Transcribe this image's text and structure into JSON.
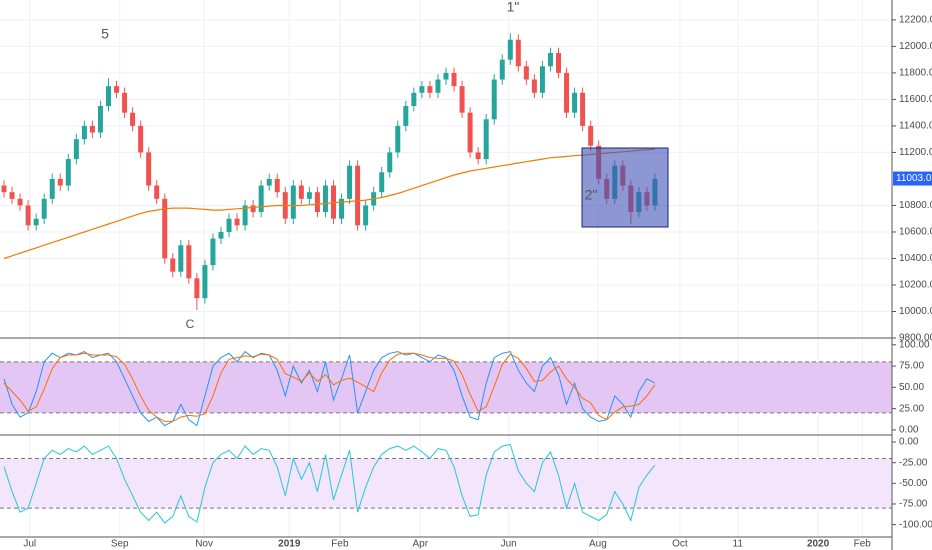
{
  "chart_data": [
    {
      "type": "candlestick",
      "xlim": [
        -0.5,
        110.5
      ],
      "xticks": [
        {
          "value": 3.2,
          "label": "Jul"
        },
        {
          "value": 14.4,
          "label": "Sep"
        },
        {
          "value": 24.9,
          "label": "Nov"
        },
        {
          "value": 35.5,
          "label": "2019"
        },
        {
          "value": 41.8,
          "label": "Feb"
        },
        {
          "value": 51.8,
          "label": "Apr"
        },
        {
          "value": 62.8,
          "label": "Jun"
        },
        {
          "value": 73.9,
          "label": "Aug"
        },
        {
          "value": 84.1,
          "label": "Oct"
        },
        {
          "value": 91.3,
          "label": "11"
        },
        {
          "value": 101.3,
          "label": "2020"
        },
        {
          "value": 106.8,
          "label": "Feb"
        }
      ],
      "ylim": [
        9800,
        12350
      ],
      "yticks": [
        {
          "value": 12200,
          "label": "12200.00"
        },
        {
          "value": 12000,
          "label": "12000.00"
        },
        {
          "value": 11800,
          "label": "11800.00"
        },
        {
          "value": 11600,
          "label": "11600.00"
        },
        {
          "value": 11400,
          "label": "11400.00"
        },
        {
          "value": 11200,
          "label": "11200.00"
        },
        {
          "value": 10800,
          "label": "10800.00"
        },
        {
          "value": 10600,
          "label": "10600.00"
        },
        {
          "value": 10400,
          "label": "10400.00"
        },
        {
          "value": 10200,
          "label": "10200.00"
        },
        {
          "value": 10000,
          "label": "10000.00"
        },
        {
          "value": 9800,
          "label": "9800.00"
        }
      ],
      "grid": true,
      "up_color": "#26a69a",
      "down_color": "#ef5350",
      "candles": [
        [
          10950,
          10990,
          10860,
          10900
        ],
        [
          10900,
          10940,
          10810,
          10850
        ],
        [
          10850,
          10890,
          10760,
          10800
        ],
        [
          10800,
          10840,
          10610,
          10650
        ],
        [
          10650,
          10740,
          10610,
          10700
        ],
        [
          10700,
          10890,
          10660,
          10850
        ],
        [
          10850,
          11040,
          10810,
          11000
        ],
        [
          11000,
          11040,
          10910,
          10950
        ],
        [
          10950,
          11190,
          10910,
          11150
        ],
        [
          11150,
          11340,
          11110,
          11300
        ],
        [
          11300,
          11440,
          11260,
          11400
        ],
        [
          11400,
          11440,
          11310,
          11350
        ],
        [
          11350,
          11590,
          11310,
          11550
        ],
        [
          11550,
          11760,
          11510,
          11700
        ],
        [
          11700,
          11740,
          11610,
          11650
        ],
        [
          11650,
          11690,
          11460,
          11500
        ],
        [
          11500,
          11540,
          11360,
          11400
        ],
        [
          11400,
          11440,
          11160,
          11200
        ],
        [
          11200,
          11240,
          10910,
          10950
        ],
        [
          10950,
          10990,
          10810,
          10850
        ],
        [
          10850,
          10890,
          10360,
          10400
        ],
        [
          10400,
          10440,
          10260,
          10300
        ],
        [
          10300,
          10540,
          10260,
          10500
        ],
        [
          10500,
          10540,
          10210,
          10250
        ],
        [
          10250,
          10290,
          10010,
          10100
        ],
        [
          10100,
          10390,
          10060,
          10350
        ],
        [
          10350,
          10590,
          10310,
          10550
        ],
        [
          10550,
          10640,
          10510,
          10600
        ],
        [
          10600,
          10740,
          10560,
          10700
        ],
        [
          10700,
          10740,
          10610,
          10650
        ],
        [
          10650,
          10840,
          10610,
          10800
        ],
        [
          10800,
          10840,
          10710,
          10750
        ],
        [
          10750,
          10990,
          10710,
          10950
        ],
        [
          10950,
          11040,
          10910,
          11000
        ],
        [
          11000,
          11040,
          10860,
          10900
        ],
        [
          10900,
          10940,
          10660,
          10700
        ],
        [
          10700,
          10990,
          10660,
          10950
        ],
        [
          10950,
          10990,
          10810,
          10850
        ],
        [
          10850,
          10940,
          10810,
          10900
        ],
        [
          10900,
          10940,
          10710,
          10750
        ],
        [
          10750,
          10990,
          10710,
          10950
        ],
        [
          10950,
          10990,
          10660,
          10700
        ],
        [
          10700,
          10890,
          10660,
          10850
        ],
        [
          10850,
          11140,
          10810,
          11100
        ],
        [
          11100,
          11140,
          10610,
          10650
        ],
        [
          10650,
          10840,
          10610,
          10800
        ],
        [
          10800,
          10940,
          10760,
          10900
        ],
        [
          10900,
          11090,
          10860,
          11050
        ],
        [
          11050,
          11240,
          11010,
          11200
        ],
        [
          11200,
          11440,
          11160,
          11400
        ],
        [
          11400,
          11590,
          11360,
          11550
        ],
        [
          11550,
          11690,
          11510,
          11650
        ],
        [
          11650,
          11740,
          11610,
          11700
        ],
        [
          11700,
          11740,
          11610,
          11650
        ],
        [
          11650,
          11790,
          11610,
          11750
        ],
        [
          11750,
          11840,
          11710,
          11800
        ],
        [
          11800,
          11840,
          11660,
          11700
        ],
        [
          11700,
          11740,
          11460,
          11500
        ],
        [
          11500,
          11540,
          11160,
          11200
        ],
        [
          11200,
          11240,
          11110,
          11150
        ],
        [
          11150,
          11490,
          11110,
          11450
        ],
        [
          11450,
          11790,
          11410,
          11750
        ],
        [
          11750,
          11940,
          11710,
          11900
        ],
        [
          11900,
          12100,
          11860,
          12050
        ],
        [
          12050,
          12090,
          11810,
          11850
        ],
        [
          11850,
          11890,
          11710,
          11750
        ],
        [
          11750,
          11790,
          11610,
          11650
        ],
        [
          11650,
          11890,
          11610,
          11850
        ],
        [
          11850,
          11990,
          11810,
          11950
        ],
        [
          11950,
          11990,
          11760,
          11800
        ],
        [
          11800,
          11840,
          11460,
          11500
        ],
        [
          11500,
          11690,
          11460,
          11650
        ],
        [
          11650,
          11690,
          11360,
          11400
        ],
        [
          11400,
          11440,
          11210,
          11250
        ],
        [
          11250,
          11290,
          10960,
          11000
        ],
        [
          11000,
          11040,
          10810,
          10850
        ],
        [
          10850,
          11140,
          10810,
          11100
        ],
        [
          11100,
          11140,
          10910,
          10950
        ],
        [
          10950,
          10990,
          10660,
          10750
        ],
        [
          10750,
          10940,
          10710,
          10900
        ],
        [
          10900,
          10940,
          10760,
          10800
        ],
        [
          10800,
          11040,
          10760,
          11000
        ]
      ],
      "ma_color": "#f57c00",
      "ma_values": [
        10400,
        10420,
        10440,
        10460,
        10480,
        10500,
        10520,
        10540,
        10560,
        10580,
        10600,
        10620,
        10640,
        10660,
        10680,
        10700,
        10720,
        10740,
        10755,
        10765,
        10775,
        10780,
        10780,
        10780,
        10775,
        10770,
        10765,
        10765,
        10770,
        10775,
        10780,
        10785,
        10790,
        10795,
        10800,
        10800,
        10800,
        10800,
        10805,
        10810,
        10815,
        10820,
        10825,
        10830,
        10835,
        10840,
        10850,
        10860,
        10875,
        10890,
        10910,
        10930,
        10950,
        10970,
        10990,
        11010,
        11030,
        11045,
        11060,
        11070,
        11080,
        11090,
        11100,
        11110,
        11120,
        11130,
        11140,
        11150,
        11160,
        11165,
        11170,
        11175,
        11180,
        11185,
        11190,
        11195,
        11200,
        11205,
        11210,
        11215,
        11220,
        11225
      ],
      "annotations": [
        "5",
        "1\"",
        "C",
        "2\""
      ],
      "last_price": 11003.05,
      "last_price_color": "#2962ff"
    },
    {
      "type": "stochastic",
      "ylim": [
        -6,
        108
      ],
      "yticks": [
        {
          "value": 100,
          "label": "100.00"
        },
        {
          "value": 75,
          "label": "75.00"
        },
        {
          "value": 50,
          "label": "50.00"
        },
        {
          "value": 25,
          "label": "25.00"
        },
        {
          "value": 0,
          "label": "0.00"
        }
      ],
      "bands": [
        20,
        80
      ],
      "band_color": "#e4c6f5",
      "series": [
        {
          "color": "#2196f3",
          "values": [
            60,
            30,
            15,
            20,
            45,
            80,
            90,
            85,
            90,
            88,
            92,
            85,
            88,
            90,
            80,
            60,
            40,
            20,
            10,
            15,
            5,
            10,
            30,
            12,
            5,
            40,
            75,
            85,
            90,
            80,
            92,
            85,
            90,
            88,
            70,
            40,
            75,
            55,
            70,
            45,
            80,
            35,
            60,
            88,
            20,
            45,
            70,
            85,
            90,
            92,
            88,
            90,
            85,
            80,
            88,
            85,
            70,
            40,
            15,
            12,
            55,
            85,
            90,
            92,
            70,
            55,
            45,
            75,
            85,
            65,
            30,
            55,
            25,
            15,
            10,
            12,
            40,
            30,
            15,
            45,
            60,
            55
          ]
        },
        {
          "color": "#ff6d00",
          "values": [
            55,
            45,
            35,
            22,
            27,
            48,
            72,
            85,
            88,
            88,
            90,
            88,
            88,
            88,
            86,
            77,
            60,
            40,
            23,
            15,
            10,
            10,
            15,
            17,
            16,
            19,
            40,
            67,
            83,
            85,
            87,
            86,
            89,
            88,
            83,
            66,
            62,
            57,
            67,
            57,
            65,
            53,
            58,
            61,
            56,
            51,
            45,
            67,
            82,
            89,
            90,
            90,
            88,
            85,
            84,
            84,
            81,
            65,
            42,
            22,
            27,
            51,
            77,
            89,
            84,
            72,
            57,
            58,
            68,
            75,
            60,
            50,
            37,
            32,
            17,
            12,
            21,
            27,
            28,
            30,
            40,
            53
          ]
        }
      ]
    },
    {
      "type": "williams",
      "ylim": [
        -115,
        8.5
      ],
      "yticks": [
        {
          "value": 0,
          "label": "0.00"
        },
        {
          "value": -25,
          "label": "-25.00"
        },
        {
          "value": -50,
          "label": "-50.00"
        },
        {
          "value": -75,
          "label": "-75.00"
        },
        {
          "value": -100,
          "label": "-100.00"
        }
      ],
      "bands": [
        -80,
        -20
      ],
      "band_color": "#f3e5fb",
      "series": [
        {
          "color": "#26c6da",
          "values": [
            -30,
            -60,
            -85,
            -80,
            -50,
            -20,
            -10,
            -15,
            -8,
            -12,
            -5,
            -15,
            -10,
            -5,
            -20,
            -45,
            -65,
            -85,
            -95,
            -85,
            -98,
            -90,
            -65,
            -90,
            -97,
            -55,
            -25,
            -15,
            -10,
            -20,
            -5,
            -15,
            -8,
            -10,
            -30,
            -65,
            -20,
            -45,
            -25,
            -60,
            -15,
            -70,
            -40,
            -10,
            -85,
            -55,
            -30,
            -15,
            -8,
            -5,
            -10,
            -5,
            -12,
            -20,
            -8,
            -10,
            -30,
            -65,
            -90,
            -88,
            -40,
            -12,
            -5,
            -3,
            -35,
            -50,
            -60,
            -25,
            -12,
            -40,
            -80,
            -50,
            -85,
            -90,
            -95,
            -88,
            -60,
            -75,
            -95,
            -55,
            -40,
            -28
          ]
        }
      ]
    }
  ]
}
